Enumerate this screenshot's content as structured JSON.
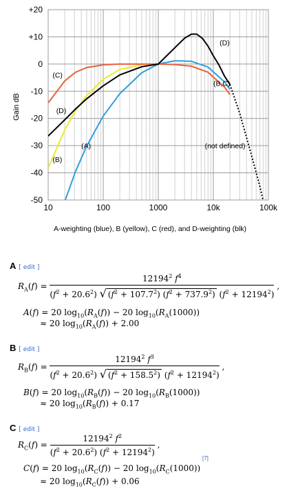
{
  "chart_data": {
    "type": "line",
    "ylabel": "Gain dB",
    "xlabel": "",
    "caption": "A-weighting (blue), B (yellow), C (red), and D-weighting (blk)",
    "x_ticks": [
      "10",
      "100",
      "1000",
      "10k",
      "100k"
    ],
    "y_ticks": [
      "+20",
      "+10",
      "0",
      "-10",
      "-20",
      "-30",
      "-40",
      "-50"
    ],
    "x_scale": "log",
    "xlim": [
      10,
      100000
    ],
    "ylim": [
      -50,
      20
    ],
    "grid": true,
    "series": [
      {
        "name": "A",
        "color": "#2a9fe0",
        "x": [
          10,
          20,
          31.5,
          50,
          100,
          200,
          500,
          1000,
          2000,
          4000,
          8000,
          16000,
          20000
        ],
        "y": [
          -70.4,
          -50.5,
          -39.4,
          -30.2,
          -19.1,
          -10.9,
          -3.2,
          0,
          1.2,
          1.0,
          -1.1,
          -6.6,
          -9.3
        ]
      },
      {
        "name": "B",
        "color": "#ecea2c",
        "x": [
          10,
          20,
          31.5,
          50,
          100,
          200,
          500,
          1000
        ],
        "y": [
          -38.2,
          -24.2,
          -17.1,
          -11.6,
          -5.6,
          -2.0,
          -0.3,
          0
        ]
      },
      {
        "name": "C",
        "color": "#e8613c",
        "x": [
          10,
          20,
          31.5,
          50,
          100,
          200,
          500,
          1000,
          2000,
          4000,
          8000,
          16000,
          20000
        ],
        "y": [
          -14.3,
          -6.2,
          -3.0,
          -1.3,
          -0.3,
          0,
          0,
          0,
          -0.2,
          -0.8,
          -3.0,
          -8.5,
          -11.2
        ]
      },
      {
        "name": "D",
        "color": "#000000",
        "x": [
          10,
          20,
          31.5,
          50,
          100,
          200,
          500,
          1000,
          2000,
          3000,
          4000,
          5000,
          6300,
          8000,
          10000,
          12500,
          16000,
          20000
        ],
        "y": [
          -26.5,
          -20.5,
          -16.5,
          -12.8,
          -8.0,
          -4.0,
          -1.0,
          0,
          6,
          9.5,
          11,
          11,
          9.5,
          6.6,
          3.0,
          -0.2,
          -4.5,
          -7.5
        ]
      },
      {
        "name": "not defined",
        "color": "#000000",
        "dotted": true,
        "x": [
          20000,
          30000,
          40000,
          50000,
          60000,
          70000,
          80000
        ],
        "y": [
          -7.5,
          -18,
          -27,
          -34,
          -40,
          -45,
          -50
        ]
      }
    ],
    "annotations": [
      {
        "text": "(D)",
        "x": 13000,
        "y": 7
      },
      {
        "text": "(B,C)",
        "x": 10000,
        "y": -8
      },
      {
        "text": "(C)",
        "x": 12,
        "y": -5
      },
      {
        "text": "(D)",
        "x": 14,
        "y": -18
      },
      {
        "text": "(A)",
        "x": 40,
        "y": -31
      },
      {
        "text": "(B)",
        "x": 12,
        "y": -36
      },
      {
        "text": "(not defined)",
        "x": 7000,
        "y": -31
      }
    ]
  },
  "sections": [
    {
      "letter": "A",
      "edit": "edit"
    },
    {
      "letter": "B",
      "edit": "edit"
    },
    {
      "letter": "C",
      "edit": "edit"
    }
  ],
  "ref_mark": "[7]"
}
